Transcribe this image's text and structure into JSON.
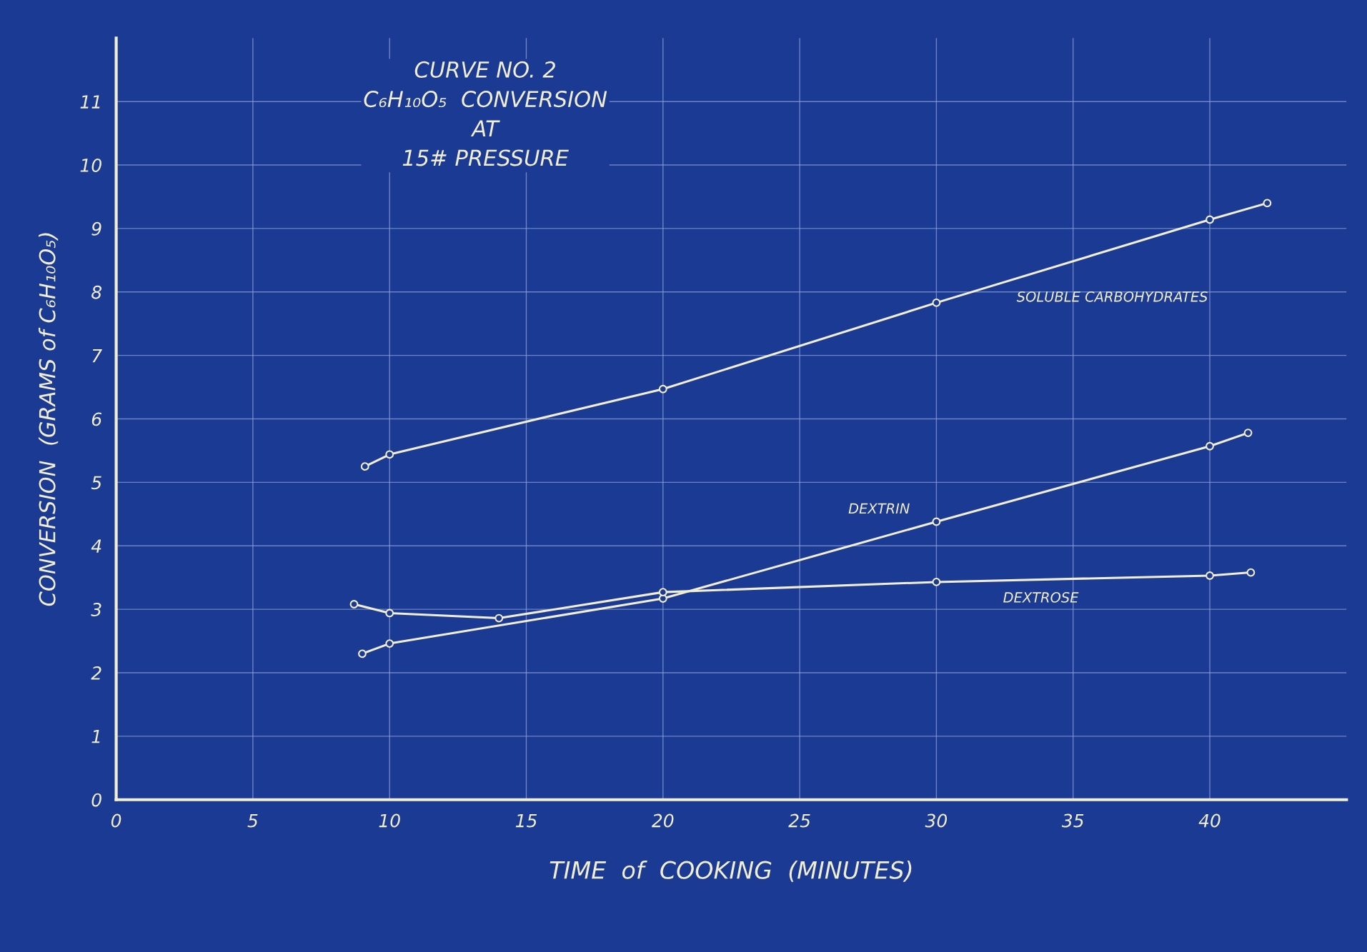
{
  "chart_data": {
    "type": "line",
    "title": "CURVE NO. 2\nC₆H₁₀O₅  CONVERSION\nAT\n15# PRESSURE",
    "xlabel": "TIME  of  COOKING  (MINUTES)",
    "ylabel": "CONVERSION  (GRAMS of C₆H₁₀O₅)",
    "series": [
      {
        "name": "SOLUBLE CARBOHYDRATES",
        "color": "#f2eed2",
        "x": [
          9.1,
          10,
          20,
          30,
          40,
          42.1
        ],
        "values": [
          5.25,
          5.44,
          6.47,
          7.83,
          9.14,
          9.4
        ]
      },
      {
        "name": "DEXTRIN",
        "color": "#f2eed2",
        "x": [
          9.0,
          10,
          20,
          30,
          40,
          41.4
        ],
        "values": [
          2.3,
          2.46,
          3.17,
          4.38,
          5.57,
          5.78
        ]
      },
      {
        "name": "DEXTROSE",
        "color": "#f2eed2",
        "x": [
          8.7,
          10,
          14,
          20,
          30,
          40,
          41.5
        ],
        "values": [
          3.08,
          2.94,
          2.86,
          3.27,
          3.43,
          3.53,
          3.58
        ]
      }
    ],
    "xlim": [
      0,
      45
    ],
    "ylim": [
      0,
      12
    ],
    "xticks": [
      0,
      5,
      10,
      15,
      20,
      25,
      30,
      35,
      40
    ],
    "yticks": [
      0,
      1,
      2,
      3,
      4,
      5,
      6,
      7,
      8,
      9,
      10,
      11
    ],
    "grid": true,
    "marker": "circle",
    "line_style": "solid",
    "legend": false
  }
}
